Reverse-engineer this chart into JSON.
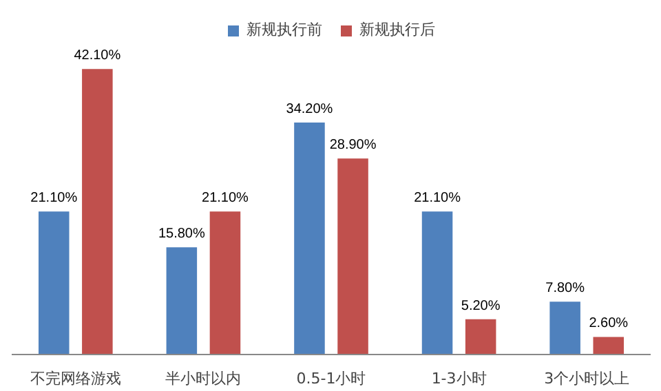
{
  "chart_data": {
    "type": "bar",
    "categories": [
      "不完网络游戏",
      "半小时以内",
      "0.5-1小时",
      "1-3小时",
      "3个小时以上"
    ],
    "series": [
      {
        "name": "新规执行前",
        "color": "#4f81bd",
        "values": [
          21.1,
          15.8,
          34.2,
          21.1,
          7.8
        ],
        "value_labels": [
          "21.10%",
          "15.80%",
          "34.20%",
          "21.10%",
          "7.80%"
        ]
      },
      {
        "name": "新规执行后",
        "color": "#c0504d",
        "values": [
          42.1,
          21.1,
          28.9,
          5.2,
          2.6
        ],
        "value_labels": [
          "42.10%",
          "21.10%",
          "28.90%",
          "5.20%",
          "2.60%"
        ]
      }
    ],
    "legend": "top",
    "grid": false
  }
}
